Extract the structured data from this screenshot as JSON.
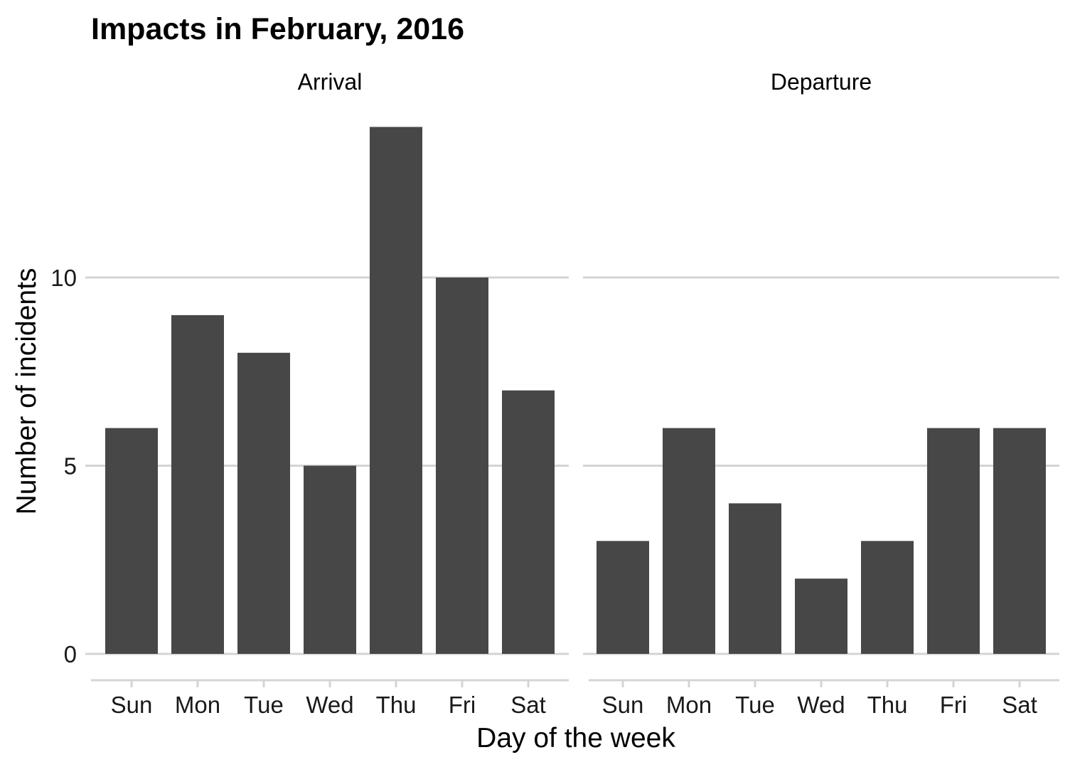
{
  "chart_data": {
    "type": "bar",
    "title": "Impacts in February, 2016",
    "xlabel": "Day of the week",
    "ylabel": "Number of incidents",
    "categories": [
      "Sun",
      "Mon",
      "Tue",
      "Wed",
      "Thu",
      "Fri",
      "Sat"
    ],
    "yticks": [
      0,
      5,
      10
    ],
    "ytick_labels": [
      "0",
      "5",
      "10"
    ],
    "ylim": [
      0,
      14
    ],
    "grid": true,
    "bar_color": "#474747",
    "grid_color": "#d4d4d4",
    "facets": [
      {
        "name": "Arrival",
        "values": [
          6,
          9,
          8,
          5,
          14,
          10,
          7
        ]
      },
      {
        "name": "Departure",
        "values": [
          3,
          6,
          4,
          2,
          3,
          6,
          6
        ]
      }
    ]
  }
}
